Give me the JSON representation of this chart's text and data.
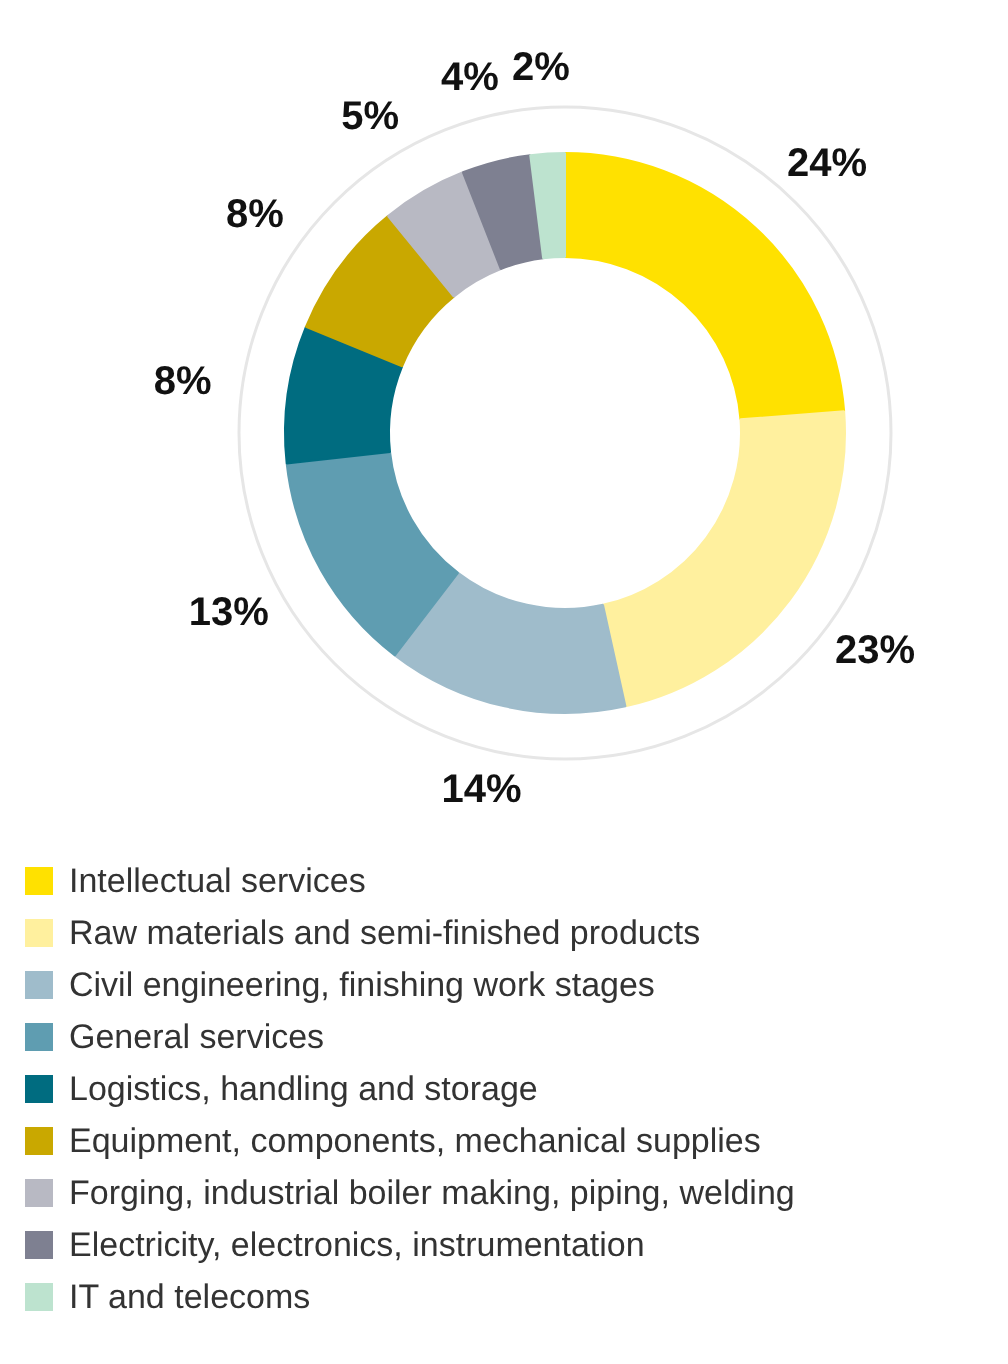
{
  "chart_data": {
    "type": "donut",
    "categories": [
      "Intellectual services",
      "Raw materials and semi-finished products",
      "Civil engineering, finishing work stages",
      "General services",
      "Logistics, handling and storage",
      "Equipment, components, mechanical supplies",
      "Forging, industrial boiler making, piping, welding",
      "Electricity, electronics, instrumentation",
      "IT and telecoms"
    ],
    "values": [
      24,
      23,
      14,
      13,
      8,
      8,
      5,
      4,
      2
    ],
    "value_labels": [
      "24%",
      "23%",
      "14%",
      "13%",
      "8%",
      "8%",
      "5%",
      "4%",
      "2%"
    ],
    "colors": [
      "#ffe100",
      "#fff09e",
      "#9fbccb",
      "#5f9db1",
      "#006c80",
      "#c9a800",
      "#b8b9c3",
      "#7e8091",
      "#bde3cf"
    ],
    "legend": "bottom"
  }
}
